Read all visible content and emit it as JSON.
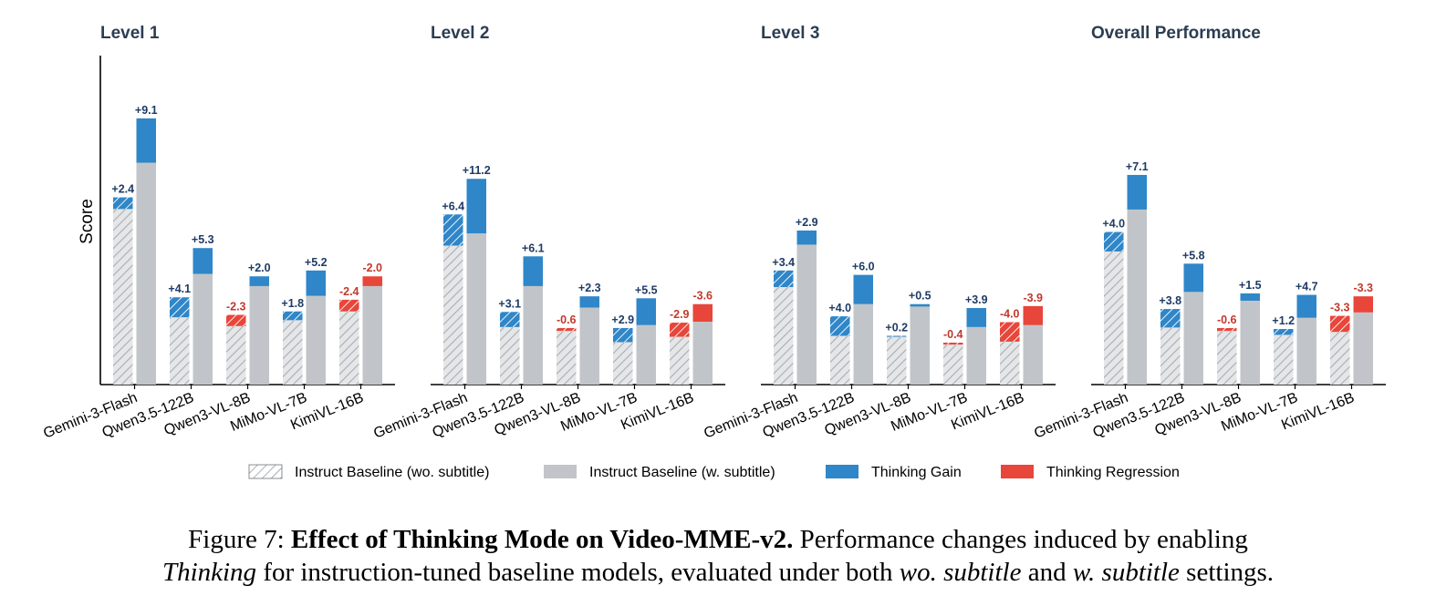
{
  "chart_data": {
    "type": "bar",
    "ylabel": "Score",
    "colors": {
      "baseline_wo": "#e4e6e8",
      "baseline_wo_hatch": "#a9adb1",
      "baseline_w": "#c1c5c9",
      "gain": "#2f86c8",
      "regression": "#e8463a"
    },
    "legend": [
      {
        "key": "baseline_wo",
        "label": "Instruct Baseline (wo. subtitle)"
      },
      {
        "key": "baseline_w",
        "label": "Instruct Baseline (w. subtitle)"
      },
      {
        "key": "gain",
        "label": "Thinking Gain"
      },
      {
        "key": "regression",
        "label": "Thinking Regression"
      }
    ],
    "categories": [
      "Gemini-3-Flash",
      "Qwen3.5-122B",
      "Qwen3-VL-8B",
      "MiMo-VL-7B",
      "KimiVL-16B"
    ],
    "panels": [
      {
        "title": "Level 1",
        "baseline_wo": [
          36.0,
          13.8,
          12.0,
          13.2,
          15.0
        ],
        "delta_wo": [
          2.4,
          4.1,
          -2.3,
          1.8,
          -2.4
        ],
        "delta_wo_labels": [
          "+2.4",
          "+4.1",
          "-2.3",
          "+1.8",
          "-2.4"
        ],
        "baseline_w": [
          45.5,
          22.7,
          20.2,
          18.2,
          20.2
        ],
        "delta_w": [
          9.1,
          5.3,
          2.0,
          5.2,
          -2.0
        ],
        "delta_w_labels": [
          "+9.1",
          "+5.3",
          "+2.0",
          "+5.2",
          "-2.0"
        ]
      },
      {
        "title": "Level 2",
        "baseline_wo": [
          28.5,
          11.8,
          11.0,
          8.7,
          9.8
        ],
        "delta_wo": [
          6.4,
          3.1,
          -0.6,
          2.9,
          -2.9
        ],
        "delta_wo_labels": [
          "+6.4",
          "+3.1",
          "-0.6",
          "+2.9",
          "-2.9"
        ],
        "baseline_w": [
          31.0,
          20.2,
          15.8,
          12.2,
          12.9
        ],
        "delta_w": [
          11.2,
          6.1,
          2.3,
          5.5,
          -3.6
        ],
        "delta_w_labels": [
          "+11.2",
          "+6.1",
          "+2.3",
          "+5.5",
          "-3.6"
        ]
      },
      {
        "title": "Level 3",
        "baseline_wo": [
          20.0,
          10.0,
          9.8,
          8.2,
          8.8
        ],
        "delta_wo": [
          3.4,
          4.0,
          0.2,
          -0.4,
          -4.0
        ],
        "delta_wo_labels": [
          "+3.4",
          "+4.0",
          "+0.2",
          "-0.4",
          "-4.0"
        ],
        "baseline_w": [
          28.7,
          16.5,
          16.0,
          11.8,
          12.2
        ],
        "delta_w": [
          2.9,
          6.0,
          0.5,
          3.9,
          -3.9
        ],
        "delta_w_labels": [
          "+2.9",
          "+6.0",
          "+0.5",
          "+3.9",
          "-3.9"
        ]
      },
      {
        "title": "Overall Performance",
        "baseline_wo": [
          27.3,
          11.7,
          11.0,
          10.2,
          10.8
        ],
        "delta_wo": [
          4.0,
          3.8,
          -0.6,
          1.2,
          -3.3
        ],
        "delta_wo_labels": [
          "+4.0",
          "+3.8",
          "-0.6",
          "+1.2",
          "-3.3"
        ],
        "baseline_w": [
          35.9,
          19.0,
          17.2,
          13.7,
          14.8
        ],
        "delta_w": [
          7.1,
          5.8,
          1.5,
          4.7,
          -3.3
        ],
        "delta_w_labels": [
          "+7.1",
          "+5.8",
          "+1.5",
          "+4.7",
          "-3.3"
        ]
      }
    ]
  },
  "caption": {
    "prefix": "Figure 7: ",
    "bold": "Effect of Thinking Mode on Video-MME-v2.",
    "text1": " Performance changes induced by enabling",
    "italic1": "Thinking",
    "text2": " for instruction-tuned baseline models, evaluated under both ",
    "italic2": "wo. subtitle",
    "text3": " and ",
    "italic3": "w. subtitle",
    "text4": " settings."
  }
}
